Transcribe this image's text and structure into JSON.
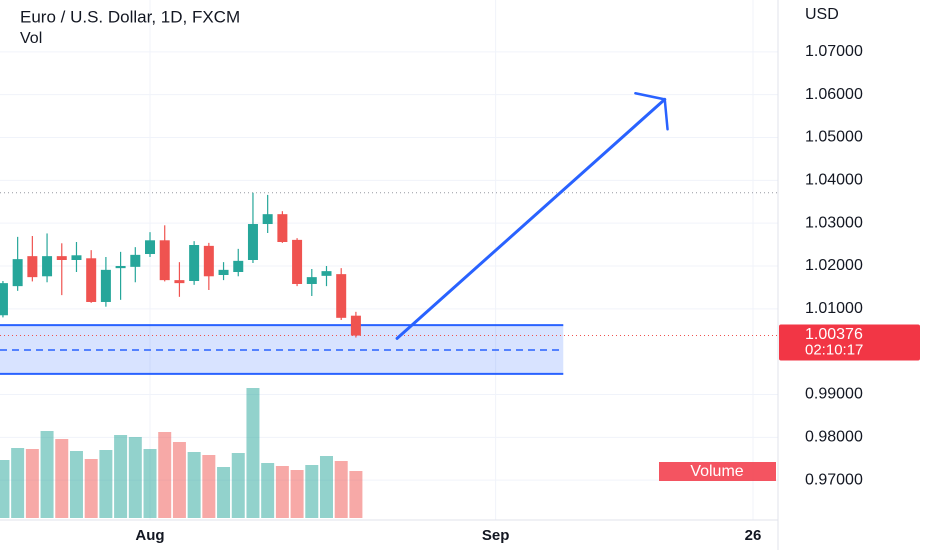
{
  "chart_data": {
    "type": "candlestick",
    "title": "Euro / U.S. Dollar, 1D, FXCM",
    "subtitle": "Vol",
    "y_axis_label": "USD",
    "volume_label": "Volume",
    "up_color": "#26a69a",
    "down_color": "#ef5350",
    "open": [
      1.0085,
      1.0153,
      1.0223,
      1.0176,
      1.0223,
      1.0214,
      1.0218,
      1.0116,
      1.0195,
      1.0198,
      1.0228,
      1.026,
      1.0167,
      1.0165,
      1.0247,
      1.0179,
      1.0186,
      1.0214,
      1.0298,
      1.0321,
      1.0261,
      1.0158,
      1.0177,
      1.0181,
      1.0084
    ],
    "high": [
      1.0165,
      1.0268,
      1.027,
      1.0276,
      1.0253,
      1.0256,
      1.0237,
      1.0221,
      1.0233,
      1.0244,
      1.0279,
      1.0295,
      1.0209,
      1.0258,
      1.0254,
      1.0209,
      1.024,
      1.0371,
      1.0366,
      1.0328,
      1.0265,
      1.0193,
      1.02,
      1.0195,
      1.0093
    ],
    "low": [
      1.008,
      1.0142,
      1.0164,
      1.0162,
      1.0132,
      1.0186,
      1.0114,
      1.0105,
      1.0121,
      1.0162,
      1.0221,
      1.0164,
      1.0128,
      1.0156,
      1.0144,
      1.0167,
      1.0176,
      1.0207,
      1.0277,
      1.0254,
      1.0153,
      1.013,
      1.0153,
      1.0074,
      1.0033
    ],
    "close": [
      1.016,
      1.0216,
      1.0174,
      1.0223,
      1.0214,
      1.0225,
      1.0116,
      1.0191,
      1.02,
      1.0226,
      1.026,
      1.0167,
      1.016,
      1.0249,
      1.0176,
      1.0191,
      1.0212,
      1.0298,
      1.0321,
      1.0256,
      1.0158,
      1.0174,
      1.0188,
      1.0079,
      1.00376
    ],
    "volume": [
      58,
      70,
      69,
      87,
      79,
      67,
      59,
      68,
      83,
      81,
      69,
      86,
      76,
      66,
      63,
      51,
      65,
      130,
      55,
      52,
      48,
      53,
      62,
      57,
      47
    ],
    "xlim": [
      -0.2,
      52.7
    ],
    "xticks": [
      {
        "value": 10,
        "label": "Aug"
      },
      {
        "value": 33.5,
        "label": "Sep"
      },
      {
        "value": 51,
        "label": "26"
      }
    ],
    "ylim": [
      0.9607,
      1.0821
    ],
    "yticks": [
      {
        "value": 0.97,
        "label": "0.97000"
      },
      {
        "value": 0.98,
        "label": "0.98000"
      },
      {
        "value": 0.99,
        "label": "0.99000"
      },
      {
        "value": 1.01,
        "label": "1.01000"
      },
      {
        "value": 1.02,
        "label": "1.02000"
      },
      {
        "value": 1.03,
        "label": "1.03000"
      },
      {
        "value": 1.04,
        "label": "1.04000"
      },
      {
        "value": 1.05,
        "label": "1.05000"
      },
      {
        "value": 1.06,
        "label": "1.06000"
      },
      {
        "value": 1.07,
        "label": "1.07000"
      }
    ],
    "grid": true,
    "last_price": 1.00376,
    "countdown": "02:10:17",
    "high_line": 1.0371,
    "zone": {
      "low": 0.9948,
      "high": 1.0062,
      "mid": 1.0004,
      "x_end": 38.1
    },
    "arrow": {
      "x": [
        26.8,
        45
      ],
      "y": [
        1.0031,
        1.0589
      ]
    }
  }
}
